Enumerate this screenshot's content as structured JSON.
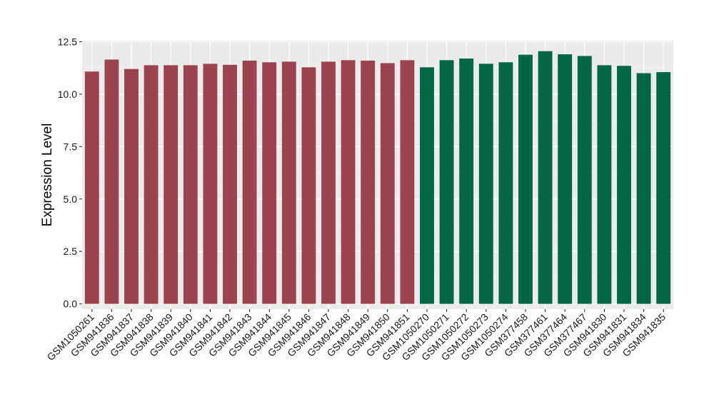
{
  "chart_data": {
    "type": "bar",
    "title": "",
    "xlabel": "",
    "ylabel": "Expression Level",
    "ylim": [
      -0.25,
      12.55
    ],
    "yticks": [
      0.0,
      2.5,
      5.0,
      7.5,
      10.0,
      12.5
    ],
    "ytick_labels": [
      "0.0",
      "2.5",
      "5.0",
      "7.5",
      "10.0",
      "12.5"
    ],
    "grid": true,
    "legend": "none",
    "colors": {
      "panel": "#ebebeb",
      "grid_major": "#ffffff",
      "grid_minor": "#f5f5f5",
      "group1": "#9b4450",
      "group2": "#006643"
    },
    "categories": [
      "GSM1050261",
      "GSM941836",
      "GSM941837",
      "GSM941838",
      "GSM941839",
      "GSM941840",
      "GSM941841",
      "GSM941842",
      "GSM941843",
      "GSM941844",
      "GSM941845",
      "GSM941846",
      "GSM941847",
      "GSM941848",
      "GSM941849",
      "GSM941850",
      "GSM941851",
      "GSM1050270",
      "GSM1050271",
      "GSM1050272",
      "GSM1050273",
      "GSM1050274",
      "GSM377458",
      "GSM377461",
      "GSM377464",
      "GSM377467",
      "GSM941830",
      "GSM941831",
      "GSM941834",
      "GSM941835"
    ],
    "values": [
      11.08,
      11.65,
      11.2,
      11.38,
      11.38,
      11.38,
      11.45,
      11.4,
      11.6,
      11.52,
      11.55,
      11.28,
      11.55,
      11.62,
      11.6,
      11.48,
      11.62,
      11.28,
      11.62,
      11.7,
      11.45,
      11.52,
      11.88,
      12.05,
      11.9,
      11.82,
      11.38,
      11.35,
      11.0,
      11.05
    ],
    "groups": [
      "group1",
      "group1",
      "group1",
      "group1",
      "group1",
      "group1",
      "group1",
      "group1",
      "group1",
      "group1",
      "group1",
      "group1",
      "group1",
      "group1",
      "group1",
      "group1",
      "group1",
      "group2",
      "group2",
      "group2",
      "group2",
      "group2",
      "group2",
      "group2",
      "group2",
      "group2",
      "group2",
      "group2",
      "group2",
      "group2"
    ]
  }
}
